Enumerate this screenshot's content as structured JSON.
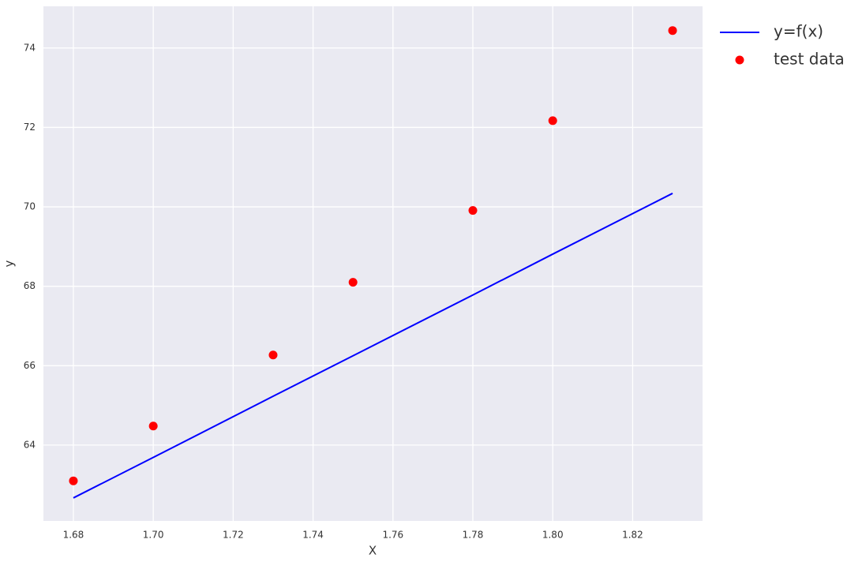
{
  "chart_data": {
    "type": "line-scatter",
    "xlabel": "X",
    "ylabel": "y",
    "xlim": [
      1.6725,
      1.8375
    ],
    "ylim": [
      62.09,
      75.05
    ],
    "xticks": [
      {
        "value": 1.68,
        "label": "1.68"
      },
      {
        "value": 1.7,
        "label": "1.70"
      },
      {
        "value": 1.72,
        "label": "1.72"
      },
      {
        "value": 1.74,
        "label": "1.74"
      },
      {
        "value": 1.76,
        "label": "1.76"
      },
      {
        "value": 1.78,
        "label": "1.78"
      },
      {
        "value": 1.8,
        "label": "1.80"
      },
      {
        "value": 1.82,
        "label": "1.82"
      }
    ],
    "yticks": [
      64,
      66,
      68,
      70,
      72,
      74
    ],
    "grid": true,
    "legend": "outside-upper-right",
    "series": [
      {
        "name": "y=f(x)",
        "kind": "line",
        "color": "#0000ff",
        "x": [
          1.68,
          1.7,
          1.73,
          1.75,
          1.78,
          1.8,
          1.83
        ],
        "values": [
          62.67,
          63.69,
          65.23,
          66.25,
          67.78,
          68.81,
          70.34
        ]
      },
      {
        "name": "test data",
        "kind": "scatter",
        "color": "#ff0000",
        "x": [
          1.68,
          1.7,
          1.73,
          1.75,
          1.78,
          1.8,
          1.83
        ],
        "values": [
          63.1,
          64.48,
          66.27,
          68.1,
          69.91,
          72.17,
          74.44
        ]
      }
    ]
  }
}
